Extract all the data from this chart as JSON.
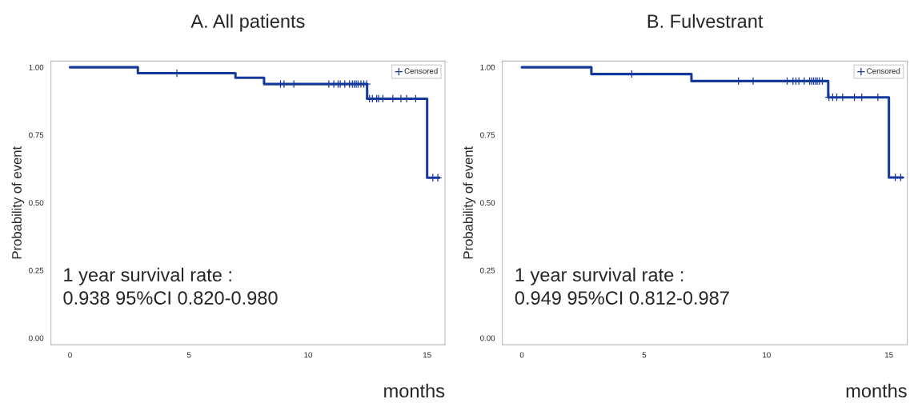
{
  "chart_data": [
    {
      "type": "step",
      "title": "A. All patients",
      "xlabel": "months",
      "ylabel": "Probability of event",
      "annotations": [
        "1 year survival rate :\n0.938 95%CI 0.820-0.980"
      ],
      "series": [
        {
          "color": "#16399c",
          "x": [
            0,
            2.85,
            6.95,
            8.15,
            12.48,
            15.0,
            15.51
          ],
          "values": [
            1.0,
            0.978,
            0.961,
            0.938,
            0.884,
            0.592,
            0.592
          ]
        },
        {
          "type": "scatter",
          "name": "Censored",
          "color": "#16399c",
          "marker": "cross",
          "x": [
            4.49,
            8.84,
            8.99,
            9.4,
            10.87,
            11.08,
            11.26,
            11.35,
            11.54,
            11.74,
            11.86,
            11.94,
            12.02,
            12.1,
            12.22,
            12.34,
            12.46,
            12.58,
            12.7,
            12.88,
            12.96,
            13.14,
            13.56,
            13.9,
            14.14,
            14.52,
            15.24,
            15.45
          ],
          "values": [
            0.978,
            0.938,
            0.938,
            0.938,
            0.938,
            0.938,
            0.938,
            0.938,
            0.938,
            0.938,
            0.938,
            0.938,
            0.938,
            0.938,
            0.938,
            0.938,
            0.938,
            0.884,
            0.884,
            0.884,
            0.884,
            0.884,
            0.884,
            0.884,
            0.884,
            0.884,
            0.592,
            0.592
          ]
        }
      ],
      "xlim": [
        -0.8,
        15.75
      ],
      "ylim": [
        -0.025,
        1.023
      ],
      "xticks": [
        0,
        5,
        10,
        15
      ],
      "yticks": [
        {
          "value": 0,
          "label": "0.00"
        },
        {
          "value": 0.25,
          "label": "0.25"
        },
        {
          "value": 0.5,
          "label": "0.50"
        },
        {
          "value": 0.75,
          "label": "0.75"
        },
        {
          "value": 1,
          "label": "1.00"
        }
      ],
      "legend": "top right",
      "grid": false
    },
    {
      "type": "step",
      "title": "B. Fulvestrant",
      "xlabel": "months",
      "ylabel": "Probability of event",
      "annotations": [
        "1 year survival rate :\n0.949 95%CI 0.812-0.987"
      ],
      "series": [
        {
          "color": "#16399c",
          "x": [
            0,
            2.84,
            6.93,
            12.52,
            15.0,
            15.56
          ],
          "values": [
            1.0,
            0.975,
            0.949,
            0.889,
            0.593,
            0.593
          ]
        },
        {
          "type": "scatter",
          "name": "Censored",
          "color": "#16399c",
          "marker": "cross",
          "x": [
            4.49,
            8.85,
            9.45,
            10.84,
            11.08,
            11.2,
            11.32,
            11.54,
            11.76,
            11.84,
            11.92,
            12.0,
            12.07,
            12.16,
            12.28,
            12.55,
            12.7,
            12.87,
            13.11,
            13.59,
            13.89,
            14.55,
            15.26,
            15.48
          ],
          "values": [
            0.975,
            0.949,
            0.949,
            0.949,
            0.949,
            0.949,
            0.949,
            0.949,
            0.949,
            0.949,
            0.949,
            0.949,
            0.949,
            0.949,
            0.949,
            0.889,
            0.889,
            0.889,
            0.889,
            0.889,
            0.889,
            0.889,
            0.593,
            0.593
          ]
        }
      ],
      "xlim": [
        -0.8,
        15.75
      ],
      "ylim": [
        -0.025,
        1.023
      ],
      "xticks": [
        0,
        5,
        10,
        15
      ],
      "yticks": [
        {
          "value": 0,
          "label": "0.00"
        },
        {
          "value": 0.25,
          "label": "0.25"
        },
        {
          "value": 0.5,
          "label": "0.50"
        },
        {
          "value": 0.75,
          "label": "0.75"
        },
        {
          "value": 1,
          "label": "1.00"
        }
      ],
      "legend": "top right",
      "grid": false
    }
  ]
}
